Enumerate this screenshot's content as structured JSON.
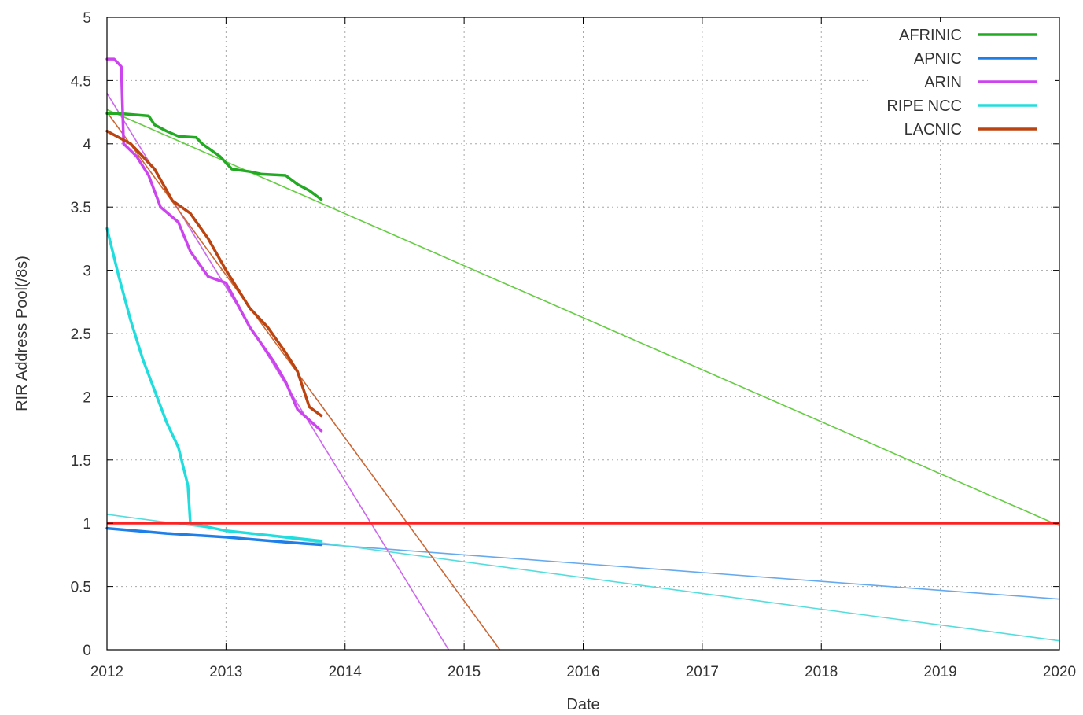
{
  "chart_data": {
    "type": "line",
    "title": "",
    "xlabel": "Date",
    "ylabel": "RIR Address Pool(/8s)",
    "xlim": [
      2012,
      2020
    ],
    "ylim": [
      0,
      5
    ],
    "x_ticks": [
      "2012",
      "2013",
      "2014",
      "2015",
      "2016",
      "2017",
      "2018",
      "2019",
      "2020"
    ],
    "y_ticks": [
      "0",
      "0.5",
      "1",
      "1.5",
      "2",
      "2.5",
      "3",
      "3.5",
      "4",
      "4.5",
      "5"
    ],
    "grid": true,
    "legend_position": "top-right",
    "series": [
      {
        "name": "AFRINIC",
        "color": "#22aa22",
        "x": [
          2012.0,
          2012.1,
          2012.35,
          2012.4,
          2012.5,
          2012.6,
          2012.75,
          2012.8,
          2012.95,
          2013.05,
          2013.2,
          2013.3,
          2013.5,
          2013.6,
          2013.7,
          2013.8
        ],
        "y": [
          4.24,
          4.24,
          4.22,
          4.15,
          4.1,
          4.06,
          4.05,
          4.0,
          3.9,
          3.8,
          3.78,
          3.76,
          3.75,
          3.68,
          3.63,
          3.56
        ]
      },
      {
        "name": "APNIC",
        "color": "#1f7fe8",
        "x": [
          2012.0,
          2012.5,
          2013.0,
          2013.5,
          2013.8
        ],
        "y": [
          0.96,
          0.92,
          0.89,
          0.85,
          0.83
        ]
      },
      {
        "name": "ARIN",
        "color": "#cc44ee",
        "x": [
          2012.0,
          2012.06,
          2012.12,
          2012.14,
          2012.25,
          2012.35,
          2012.45,
          2012.6,
          2012.7,
          2012.85,
          2013.0,
          2013.2,
          2013.4,
          2013.5,
          2013.6,
          2013.8
        ],
        "y": [
          4.67,
          4.67,
          4.61,
          4.0,
          3.9,
          3.75,
          3.5,
          3.38,
          3.15,
          2.95,
          2.9,
          2.55,
          2.28,
          2.12,
          1.9,
          1.73
        ]
      },
      {
        "name": "RIPE NCC",
        "color": "#22dddd",
        "x": [
          2012.0,
          2012.1,
          2012.2,
          2012.3,
          2012.4,
          2012.5,
          2012.6,
          2012.68,
          2012.7,
          2013.0,
          2013.4,
          2013.8
        ],
        "y": [
          3.33,
          2.95,
          2.6,
          2.3,
          2.05,
          1.8,
          1.6,
          1.3,
          1.0,
          0.94,
          0.9,
          0.86
        ]
      },
      {
        "name": "LACNIC",
        "color": "#bb4411",
        "x": [
          2012.0,
          2012.2,
          2012.4,
          2012.55,
          2012.7,
          2012.85,
          2013.0,
          2013.2,
          2013.35,
          2013.5,
          2013.6,
          2013.7,
          2013.8
        ],
        "y": [
          4.1,
          4.0,
          3.8,
          3.55,
          3.45,
          3.25,
          3.0,
          2.7,
          2.55,
          2.35,
          2.2,
          1.92,
          1.85
        ]
      }
    ],
    "trend_lines": [
      {
        "series": "AFRINIC",
        "color": "#66cc44",
        "x": [
          2012.0,
          2020.0
        ],
        "y": [
          4.27,
          0.98
        ]
      },
      {
        "series": "APNIC",
        "color": "#66aaee",
        "x": [
          2012.0,
          2020.0
        ],
        "y": [
          0.96,
          0.4
        ]
      },
      {
        "series": "ARIN",
        "color": "#cc66ee",
        "x": [
          2012.0,
          2014.87
        ],
        "y": [
          4.4,
          0.0
        ]
      },
      {
        "series": "RIPE NCC",
        "color": "#55dddd",
        "x": [
          2012.0,
          2020.0
        ],
        "y": [
          1.07,
          0.07
        ]
      },
      {
        "series": "LACNIC",
        "color": "#cc6633",
        "x": [
          2012.0,
          2015.3
        ],
        "y": [
          4.25,
          0.0
        ]
      }
    ],
    "reference_line": {
      "y": 1,
      "color": "#ff2222"
    }
  }
}
